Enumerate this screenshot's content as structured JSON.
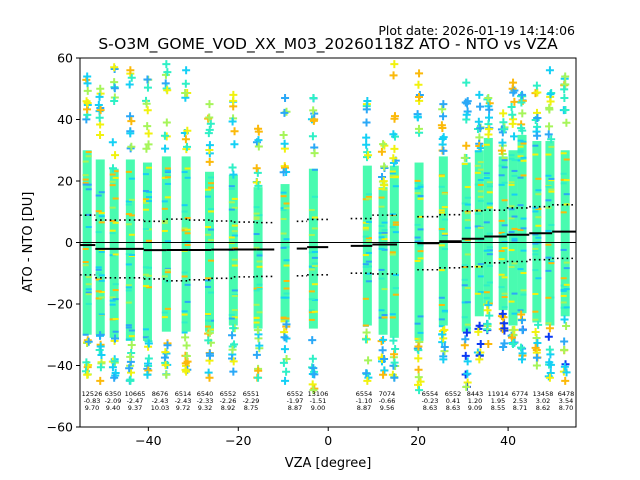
{
  "chart_data": {
    "type": "scatter",
    "title": "S-O3M_GOME_VOD_XX_M03_20260118Z ATO - NTO vs VZA",
    "subtitle": "Plot date: 2026-01-19 14:14:06",
    "xlabel": "VZA [degree]",
    "ylabel": "ATO - NTO [DU]",
    "xlim": [
      -55.2,
      55.1
    ],
    "ylim": [
      -60,
      60
    ],
    "xticks": [
      -40,
      -20,
      0,
      20,
      40
    ],
    "xtick_labels": [
      "−40",
      "−20",
      "0",
      "20",
      "40"
    ],
    "yticks": [
      -60,
      -40,
      -20,
      0,
      20,
      40,
      60
    ],
    "ytick_labels": [
      "−60",
      "−40",
      "−20",
      "0",
      "20",
      "40",
      "60"
    ],
    "grid": false,
    "zero_line": 0,
    "columns": [
      {
        "vza": -53.6,
        "core": [
          -30,
          30
        ],
        "ext": [
          -43,
          54
        ]
      },
      {
        "vza": -50.7,
        "core": [
          -30,
          27
        ],
        "ext": [
          -45,
          50
        ]
      },
      {
        "vza": -47.6,
        "core": [
          -31,
          24
        ],
        "ext": [
          -44,
          57
        ]
      },
      {
        "vza": -44.0,
        "core": [
          -32,
          27
        ],
        "ext": [
          -45,
          56
        ]
      },
      {
        "vza": -40.2,
        "core": [
          -32,
          26
        ],
        "ext": [
          -43,
          53
        ]
      },
      {
        "vza": -36.0,
        "core": [
          -29,
          28
        ],
        "ext": [
          -43,
          58
        ]
      },
      {
        "vza": -31.6,
        "core": [
          -29,
          28
        ],
        "ext": [
          -42,
          56
        ]
      },
      {
        "vza": -26.4,
        "core": [
          -29,
          23
        ],
        "ext": [
          -44,
          45
        ]
      },
      {
        "vza": -21.1,
        "core": [
          -27,
          22
        ],
        "ext": [
          -42,
          48
        ]
      },
      {
        "vza": -15.6,
        "core": [
          -28,
          18
        ],
        "ext": [
          -44,
          37
        ]
      },
      {
        "vza": -9.6,
        "core": [
          -26,
          19
        ],
        "ext": [
          -45,
          47
        ]
      },
      {
        "vza": -3.3,
        "core": [
          -28,
          24
        ],
        "ext": [
          -48,
          47
        ]
      },
      {
        "vza": 8.7,
        "core": [
          -27,
          25
        ],
        "ext": [
          -45,
          46
        ]
      },
      {
        "vza": 12.2,
        "core": [
          -30,
          18
        ],
        "ext": [
          -43,
          32
        ]
      },
      {
        "vza": 14.7,
        "core": [
          -31,
          25
        ],
        "ext": [
          -44,
          58
        ]
      },
      {
        "vza": 20.2,
        "core": [
          -32,
          26
        ],
        "ext": [
          -48,
          55
        ]
      },
      {
        "vza": 25.6,
        "core": [
          -27,
          28
        ],
        "ext": [
          -38,
          45
        ]
      },
      {
        "vza": 30.7,
        "core": [
          -29,
          26
        ],
        "ext": [
          -47,
          52
        ]
      },
      {
        "vza": 33.6,
        "core": [
          -24,
          30
        ],
        "ext": [
          -38,
          48
        ]
      },
      {
        "vza": 35.6,
        "core": [
          -20,
          34
        ],
        "ext": [
          -33,
          47
        ]
      },
      {
        "vza": 38.9,
        "core": [
          -22,
          28
        ],
        "ext": [
          -34,
          42
        ]
      },
      {
        "vza": 41.1,
        "core": [
          -27,
          30
        ],
        "ext": [
          -33,
          52
        ]
      },
      {
        "vza": 43.1,
        "core": [
          -23,
          35
        ],
        "ext": [
          -38,
          48
        ]
      },
      {
        "vza": 46.4,
        "core": [
          -26,
          33
        ],
        "ext": [
          -40,
          51
        ]
      },
      {
        "vza": 49.3,
        "core": [
          -27,
          33
        ],
        "ext": [
          -44,
          56
        ]
      },
      {
        "vza": 52.7,
        "core": [
          -24,
          30
        ],
        "ext": [
          -45,
          54
        ]
      }
    ],
    "bins": [
      {
        "vza_from": -55.2,
        "vza_to": -51.8,
        "count": "12526",
        "mean": -0.83,
        "std": 9.7,
        "mean_label": "-0.83",
        "std_label": "9.70"
      },
      {
        "vza_from": -51.8,
        "vza_to": -41.0,
        "count": "6350",
        "mean": -2.09,
        "std": 9.4,
        "mean_label": "-2.09",
        "std_label": "9.40"
      },
      {
        "vza_from": -41.0,
        "vza_to": -36.0,
        "count": "10665",
        "mean": -2.47,
        "std": 9.37,
        "mean_label": "-2.47",
        "std_label": "9.37"
      },
      {
        "vza_from": -36.0,
        "vza_to": -31.0,
        "count": "8676",
        "mean": -2.43,
        "std": 10.03,
        "mean_label": "-2.43",
        "std_label": "10.03"
      },
      {
        "vza_from": -31.0,
        "vza_to": -26.0,
        "count": "6514",
        "mean": -2.43,
        "std": 9.72,
        "mean_label": "-2.43",
        "std_label": "9.72"
      },
      {
        "vza_from": -26.0,
        "vza_to": -21.0,
        "count": "6540",
        "mean": -2.33,
        "std": 9.32,
        "mean_label": "-2.33",
        "std_label": "9.32"
      },
      {
        "vza_from": -21.0,
        "vza_to": -16.0,
        "count": "6552",
        "mean": -2.26,
        "std": 8.92,
        "mean_label": "-2.26",
        "std_label": "8.92"
      },
      {
        "vza_from": -16.0,
        "vza_to": -12.0,
        "count": "6551",
        "mean": -2.29,
        "std": 8.75,
        "mean_label": "-2.29",
        "std_label": "8.75"
      },
      {
        "vza_from": -7.0,
        "vza_to": -4.7,
        "count": "6552",
        "mean": -1.97,
        "std": 8.87,
        "mean_label": "-1.97",
        "std_label": "8.87"
      },
      {
        "vza_from": -4.7,
        "vza_to": 0.0,
        "count": "13106",
        "mean": -1.51,
        "std": 9.0,
        "mean_label": "-1.51",
        "std_label": "9.00"
      },
      {
        "vza_from": 5.0,
        "vza_to": 9.8,
        "count": "6554",
        "mean": -1.1,
        "std": 8.87,
        "mean_label": "-1.10",
        "std_label": "8.87"
      },
      {
        "vza_from": 9.8,
        "vza_to": 15.3,
        "count": "7074",
        "mean": -0.66,
        "std": 9.56,
        "mean_label": "-0.66",
        "std_label": "9.56"
      },
      {
        "vza_from": 19.8,
        "vza_to": 24.7,
        "count": "6554",
        "mean": -0.23,
        "std": 8.63,
        "mean_label": "-0.23",
        "std_label": "8.63"
      },
      {
        "vza_from": 24.7,
        "vza_to": 29.7,
        "count": "6552",
        "mean": 0.41,
        "std": 8.63,
        "mean_label": "0.41",
        "std_label": "8.63"
      },
      {
        "vza_from": 29.7,
        "vza_to": 34.7,
        "count": "8443",
        "mean": 1.2,
        "std": 9.09,
        "mean_label": "1.20",
        "std_label": "9.09"
      },
      {
        "vza_from": 34.7,
        "vza_to": 39.7,
        "count": "11914",
        "mean": 1.95,
        "std": 8.55,
        "mean_label": "1.95",
        "std_label": "8.55"
      },
      {
        "vza_from": 39.7,
        "vza_to": 44.7,
        "count": "6774",
        "mean": 2.53,
        "std": 8.71,
        "mean_label": "2.53",
        "std_label": "8.71"
      },
      {
        "vza_from": 44.7,
        "vza_to": 49.8,
        "count": "13458",
        "mean": 3.02,
        "std": 8.62,
        "mean_label": "3.02",
        "std_label": "8.62"
      },
      {
        "vza_from": 49.8,
        "vza_to": 55.1,
        "count": "6478",
        "mean": 3.54,
        "std": 8.7,
        "mean_label": "3.54",
        "std_label": "8.70"
      }
    ],
    "colors": {
      "core": "#49fbb0",
      "core2": "#2ef0c6",
      "cyan": "#14d0f5",
      "lightblue": "#2aa8f7",
      "blue": "#0a38f3",
      "lime": "#a6f55a",
      "yellow": "#f1f20e",
      "orange": "#fbb90a",
      "mean_line": "#000000",
      "zero_line": "#000000"
    }
  }
}
